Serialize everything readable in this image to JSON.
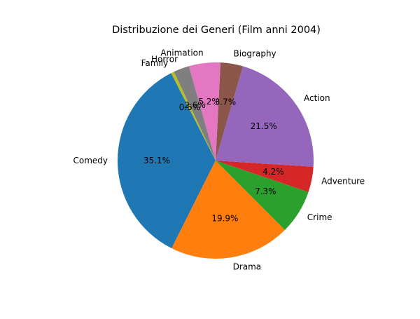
{
  "chart_data": {
    "type": "pie",
    "title": "Distribuzione dei Generi (Film anni 2004)",
    "labels": [
      "Comedy",
      "Drama",
      "Crime",
      "Adventure",
      "Action",
      "Biography",
      "Animation",
      "Horror",
      "Family"
    ],
    "values": [
      35.1,
      19.9,
      7.3,
      4.2,
      21.5,
      3.7,
      5.2,
      2.6,
      0.5
    ],
    "pct_labels": [
      "35.1%",
      "19.9%",
      "7.3%",
      "4.2%",
      "21.5%",
      "3.7%",
      "5.2%",
      "2.6%",
      "0.5%"
    ],
    "colors": [
      "#1f77b4",
      "#ff7f0e",
      "#2ca02c",
      "#d62728",
      "#9467bd",
      "#8c564b",
      "#e377c2",
      "#7f7f7f",
      "#bcbd22"
    ],
    "start_angle_deg": 117,
    "direction": "counterclockwise"
  }
}
